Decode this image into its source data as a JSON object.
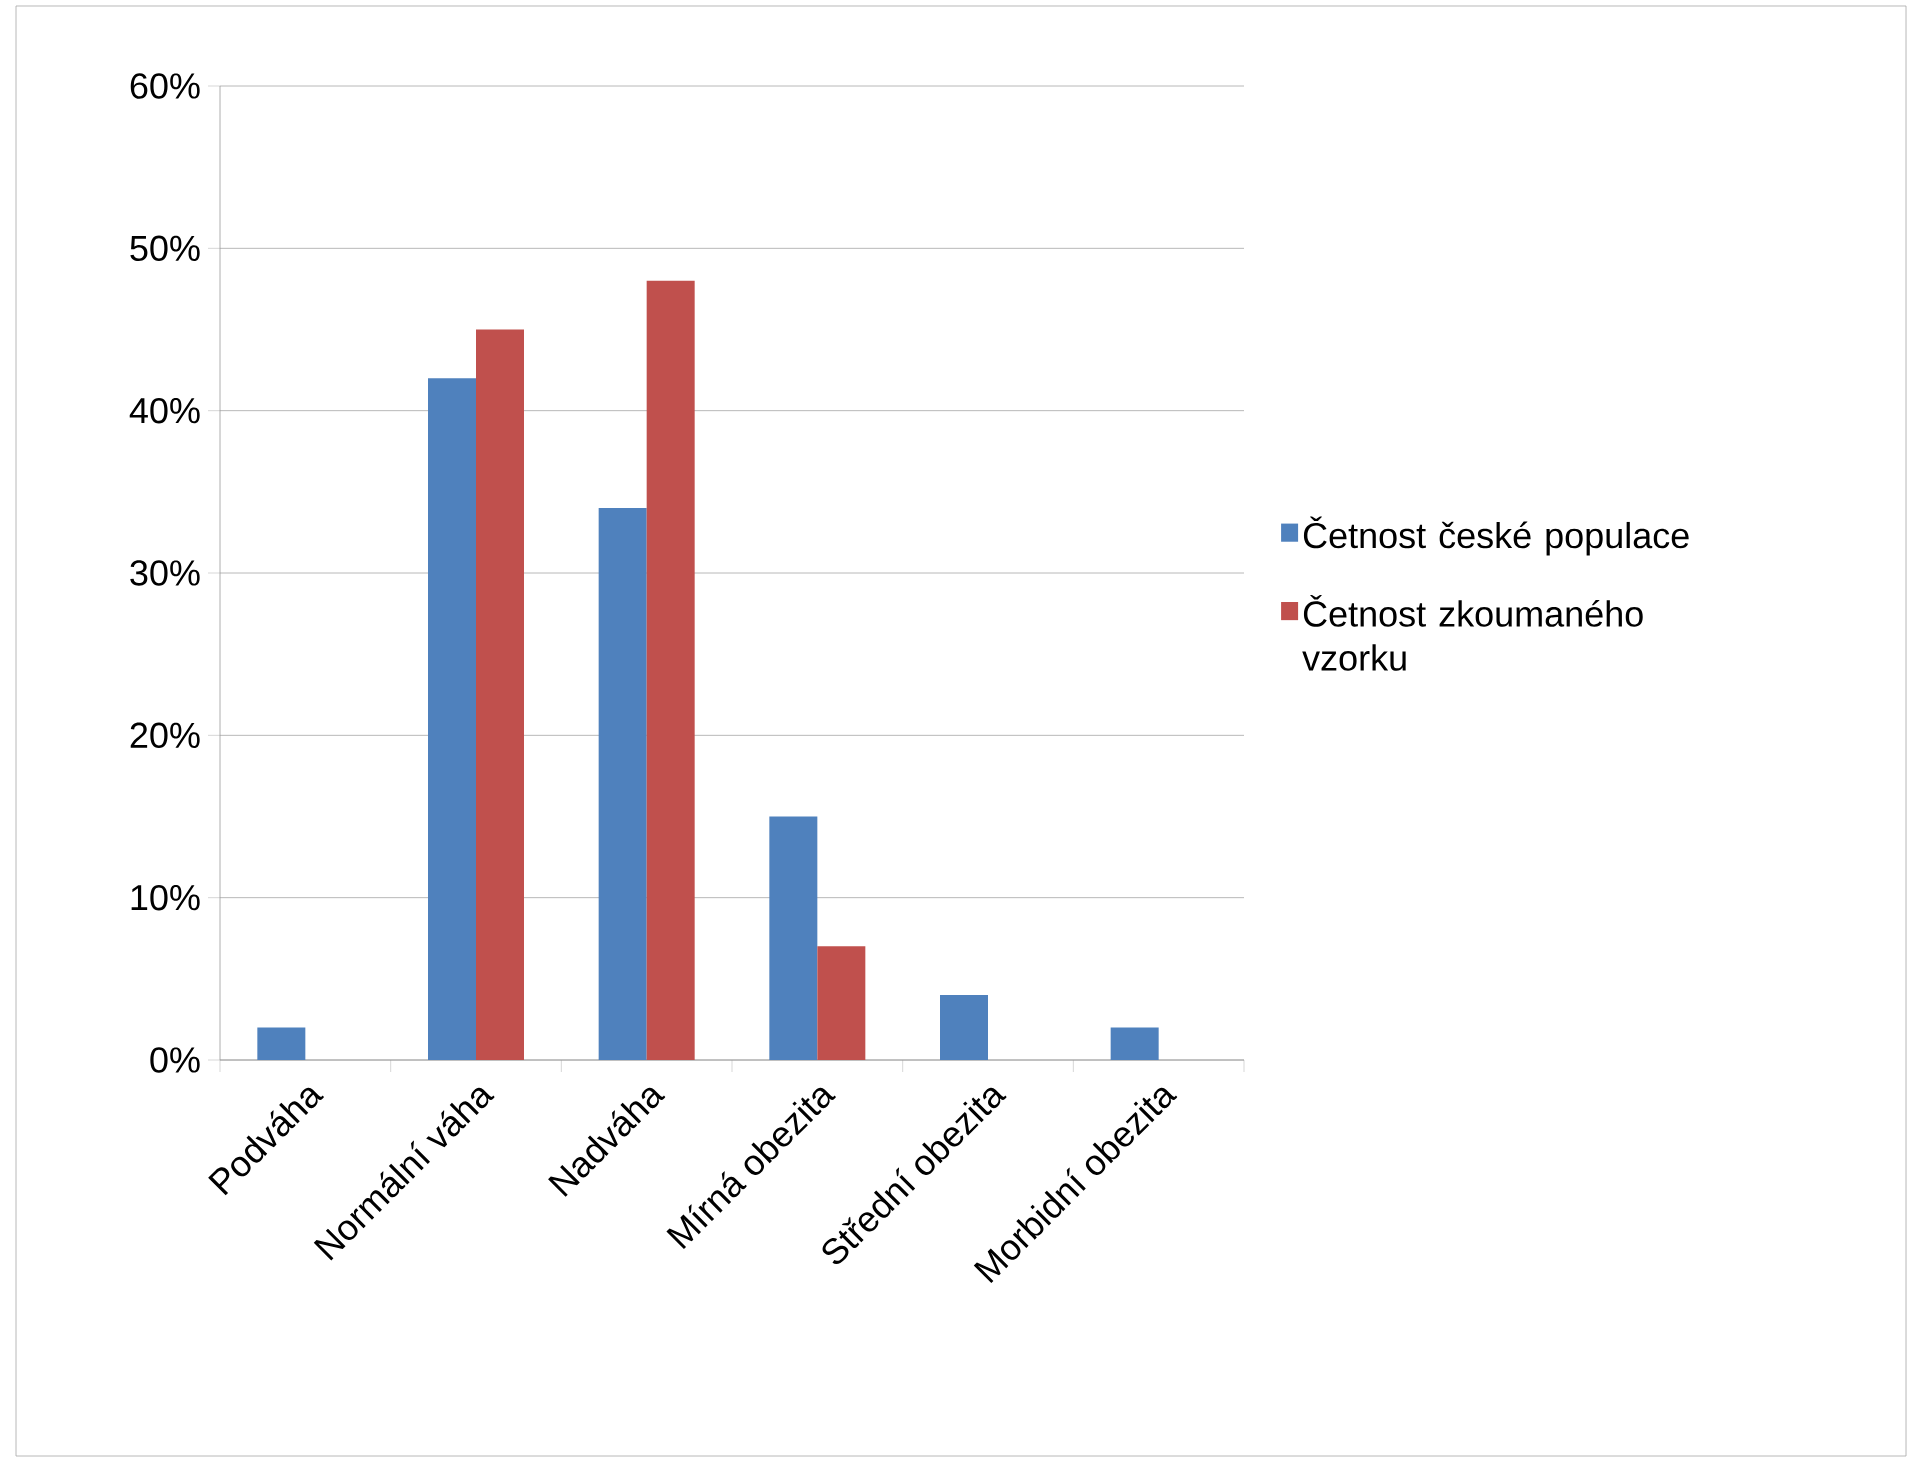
{
  "chart_data": {
    "type": "bar",
    "categories": [
      "Podváha",
      "Normální váha",
      "Nadváha",
      "Mírná obezita",
      "Střední obezita",
      "Morbidní obezita"
    ],
    "series": [
      {
        "name": "Četnost české populace",
        "color": "#4f81bd",
        "values": [
          2,
          42,
          34,
          15,
          4,
          2
        ]
      },
      {
        "name": "Četnost zkoumaného vzorku",
        "color": "#c0504d",
        "values": [
          null,
          45,
          48,
          7,
          null,
          null
        ]
      }
    ],
    "ylim": [
      0,
      60
    ],
    "yticks": [
      {
        "value": 0,
        "label": "0%"
      },
      {
        "value": 10,
        "label": "10%"
      },
      {
        "value": 20,
        "label": "20%"
      },
      {
        "value": 30,
        "label": "30%"
      },
      {
        "value": 40,
        "label": "40%"
      },
      {
        "value": 50,
        "label": "50%"
      },
      {
        "value": 60,
        "label": "60%"
      }
    ],
    "grid": "y",
    "legend": "right"
  }
}
